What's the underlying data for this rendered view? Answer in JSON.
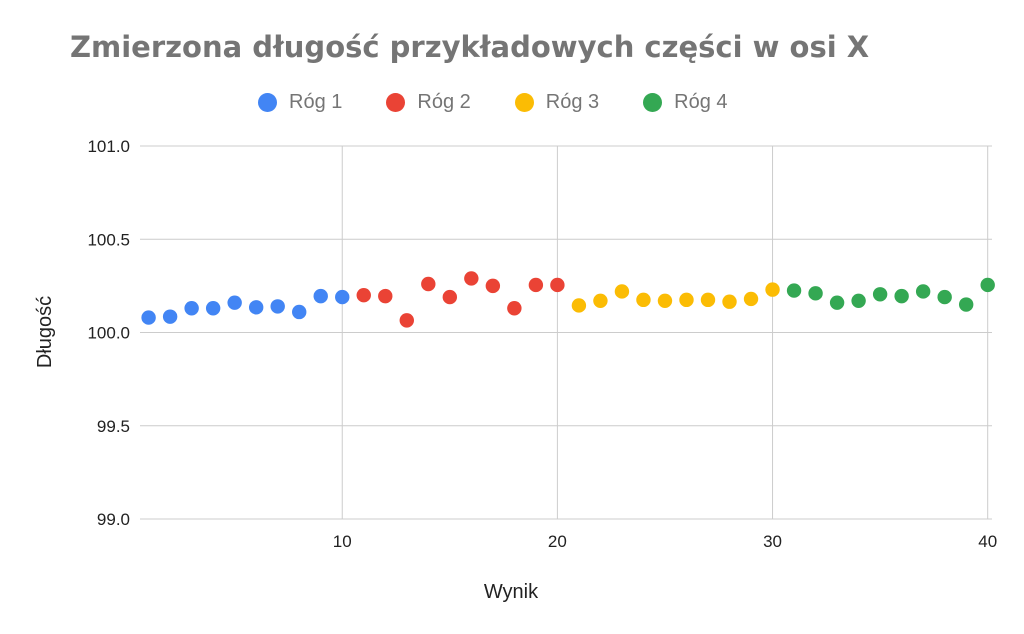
{
  "chart_data": {
    "type": "scatter",
    "title": "Zmierzona długość przykładowych części w osi X",
    "xlabel": "Wynik",
    "ylabel": "Długość",
    "xlim": [
      0.6,
      40.2
    ],
    "ylim": [
      99.0,
      101.0
    ],
    "x_ticks": [
      "10",
      "20",
      "30",
      "40"
    ],
    "y_ticks": [
      "99.0",
      "99.5",
      "100.0",
      "100.5",
      "101.0"
    ],
    "grid": true,
    "legend_position": "top",
    "series": [
      {
        "name": "Róg 1",
        "color": "#4285f4",
        "x": [
          1,
          2,
          3,
          4,
          5,
          6,
          7,
          8,
          9,
          10
        ],
        "y": [
          100.08,
          100.085,
          100.13,
          100.13,
          100.16,
          100.135,
          100.14,
          100.11,
          100.195,
          100.19
        ]
      },
      {
        "name": "Róg 2",
        "color": "#ea4335",
        "x": [
          11,
          12,
          13,
          14,
          15,
          16,
          17,
          18,
          19,
          20
        ],
        "y": [
          100.2,
          100.195,
          100.065,
          100.26,
          100.19,
          100.29,
          100.25,
          100.13,
          100.255,
          100.255
        ]
      },
      {
        "name": "Róg 3",
        "color": "#fbbc04",
        "x": [
          21,
          22,
          23,
          24,
          25,
          26,
          27,
          28,
          29,
          30
        ],
        "y": [
          100.145,
          100.17,
          100.22,
          100.175,
          100.17,
          100.175,
          100.175,
          100.165,
          100.18,
          100.23
        ]
      },
      {
        "name": "Róg 4",
        "color": "#34a853",
        "x": [
          31,
          32,
          33,
          34,
          35,
          36,
          37,
          38,
          39,
          40
        ],
        "y": [
          100.225,
          100.21,
          100.16,
          100.17,
          100.205,
          100.195,
          100.22,
          100.19,
          100.15,
          100.255
        ]
      }
    ]
  }
}
